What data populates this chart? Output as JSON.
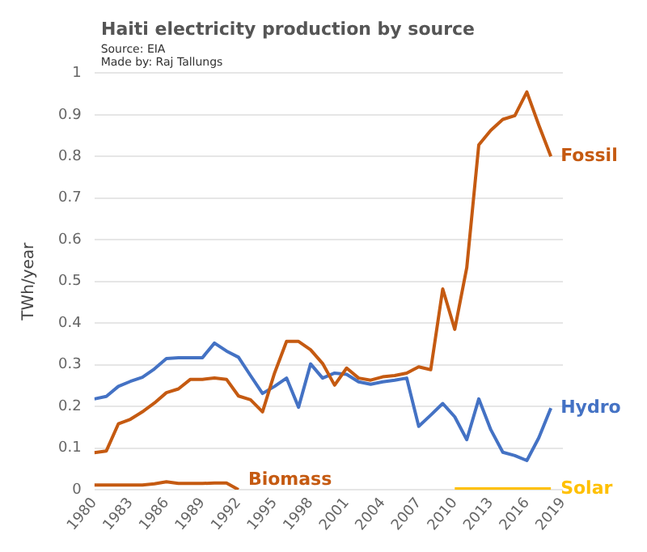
{
  "chart_data": {
    "type": "line",
    "title": "Haiti electricity production by source",
    "ylabel": "TWh/year",
    "annotations": [
      "Source: EIA",
      "Made by: Raj Tallungs"
    ],
    "x": [
      1980,
      1981,
      1982,
      1983,
      1984,
      1985,
      1986,
      1987,
      1988,
      1989,
      1990,
      1991,
      1992,
      1993,
      1994,
      1995,
      1996,
      1997,
      1998,
      1999,
      2000,
      2001,
      2002,
      2003,
      2004,
      2005,
      2006,
      2007,
      2008,
      2009,
      2010,
      2011,
      2012,
      2013,
      2014,
      2015,
      2016,
      2017,
      2018
    ],
    "series": [
      {
        "name": "Fossil",
        "color": "#c55a11",
        "values": [
          0.089,
          0.093,
          0.158,
          0.169,
          0.187,
          0.208,
          0.233,
          0.242,
          0.265,
          0.265,
          0.268,
          0.265,
          0.225,
          0.216,
          0.187,
          0.28,
          0.356,
          0.356,
          0.336,
          0.303,
          0.251,
          0.292,
          0.268,
          0.263,
          0.271,
          0.274,
          0.28,
          0.295,
          0.288,
          0.482,
          0.385,
          0.533,
          0.828,
          0.863,
          0.889,
          0.898,
          0.955,
          0.875,
          0.8
        ]
      },
      {
        "name": "Hydro",
        "color": "#4472c4",
        "values": [
          0.218,
          0.224,
          0.248,
          0.26,
          0.27,
          0.29,
          0.315,
          0.317,
          0.317,
          0.317,
          0.352,
          0.333,
          0.318,
          0.274,
          0.231,
          0.248,
          0.268,
          0.198,
          0.302,
          0.268,
          0.28,
          0.277,
          0.259,
          0.253,
          0.259,
          0.263,
          0.268,
          0.152,
          0.179,
          0.207,
          0.175,
          0.12,
          0.218,
          0.144,
          0.09,
          0.082,
          0.07,
          0.125,
          0.196
        ]
      },
      {
        "name": "Biomass",
        "color": "#c55a11",
        "x": [
          1980,
          1981,
          1982,
          1983,
          1984,
          1985,
          1986,
          1987,
          1988,
          1989,
          1990,
          1991,
          1992
        ],
        "values": [
          0.011,
          0.011,
          0.011,
          0.011,
          0.011,
          0.014,
          0.019,
          0.015,
          0.015,
          0.015,
          0.016,
          0.016,
          0
        ]
      },
      {
        "name": "Solar",
        "color": "#ffc000",
        "x": [
          2010,
          2011,
          2012,
          2013,
          2014,
          2015,
          2016,
          2017,
          2018
        ],
        "values": [
          0.002,
          0.002,
          0.002,
          0.002,
          0.002,
          0.002,
          0.002,
          0.002,
          0.002
        ]
      }
    ],
    "xlim": [
      1980,
      2019
    ],
    "xticks": [
      1980,
      1983,
      1986,
      1989,
      1992,
      1995,
      1998,
      2001,
      2004,
      2007,
      2010,
      2013,
      2016,
      2019
    ],
    "ylim": [
      0,
      1
    ],
    "yticks": [
      0,
      0.1,
      0.2,
      0.3,
      0.4,
      0.5,
      0.6,
      0.7,
      0.8,
      0.9,
      1
    ],
    "grid": "y",
    "legend": false,
    "marker": "none",
    "line_style": "solid"
  }
}
